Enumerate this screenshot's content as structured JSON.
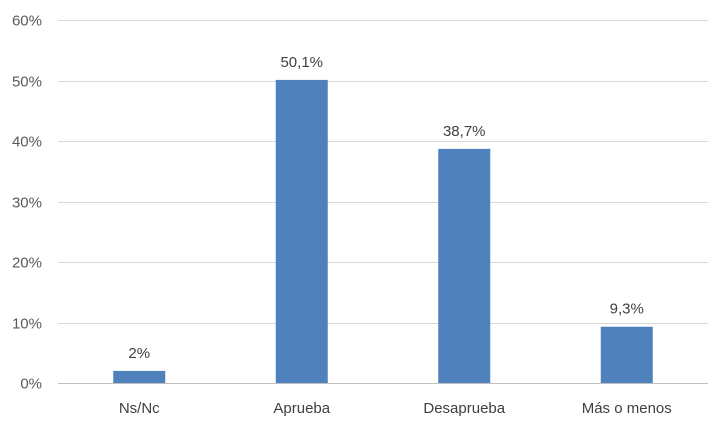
{
  "chart_data": {
    "type": "bar",
    "categories": [
      "Ns/Nc",
      "Aprueba",
      "Desaprueba",
      "Más o menos"
    ],
    "values": [
      2,
      50.1,
      38.7,
      9.3
    ],
    "data_labels": [
      "2%",
      "50,1%",
      "38,7%",
      "9,3%"
    ],
    "title": "",
    "xlabel": "",
    "ylabel": "",
    "ylim": [
      0,
      60
    ],
    "yticks": [
      0,
      10,
      20,
      30,
      40,
      50,
      60
    ],
    "ytick_labels": [
      "0%",
      "10%",
      "20%",
      "30%",
      "40%",
      "50%",
      "60%"
    ],
    "grid": true,
    "legend": "none",
    "colors": {
      "bar": "#4f81bd",
      "grid": "#d9d9d9",
      "axis": "#bfbfbf"
    }
  }
}
